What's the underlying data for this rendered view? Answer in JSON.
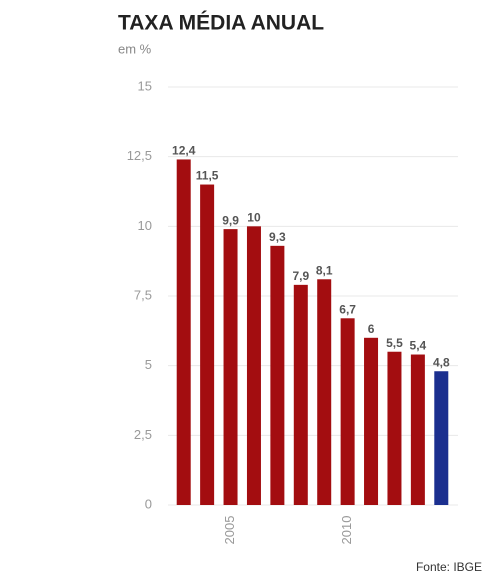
{
  "chart_data": {
    "type": "bar",
    "title": "TAXA MÉDIA ANUAL",
    "subtitle": "em %",
    "source": "Fonte: IBGE",
    "categories": [
      null,
      null,
      "2005",
      null,
      null,
      null,
      null,
      "2010",
      null,
      null,
      null,
      null
    ],
    "values": [
      12.4,
      11.5,
      9.9,
      10,
      9.3,
      7.9,
      8.1,
      6.7,
      6,
      5.5,
      5.4,
      4.8
    ],
    "value_labels": [
      "12,4",
      "11,5",
      "9,9",
      "10",
      "9,3",
      "7,9",
      "8,1",
      "6,7",
      "6",
      "5,5",
      "5,4",
      "4,8"
    ],
    "colors": [
      "#a30d10",
      "#a30d10",
      "#a30d10",
      "#a30d10",
      "#a30d10",
      "#a30d10",
      "#a30d10",
      "#a30d10",
      "#a30d10",
      "#a30d10",
      "#a30d10",
      "#1b2f8f"
    ],
    "ylim": [
      0,
      15
    ],
    "yticks": [
      0,
      {
        "value": 2.5,
        "label": "2,5"
      },
      5,
      {
        "value": 7.5,
        "label": "7,5"
      },
      10,
      {
        "value": 12.5,
        "label": "12,5"
      },
      15
    ],
    "grid": true
  }
}
